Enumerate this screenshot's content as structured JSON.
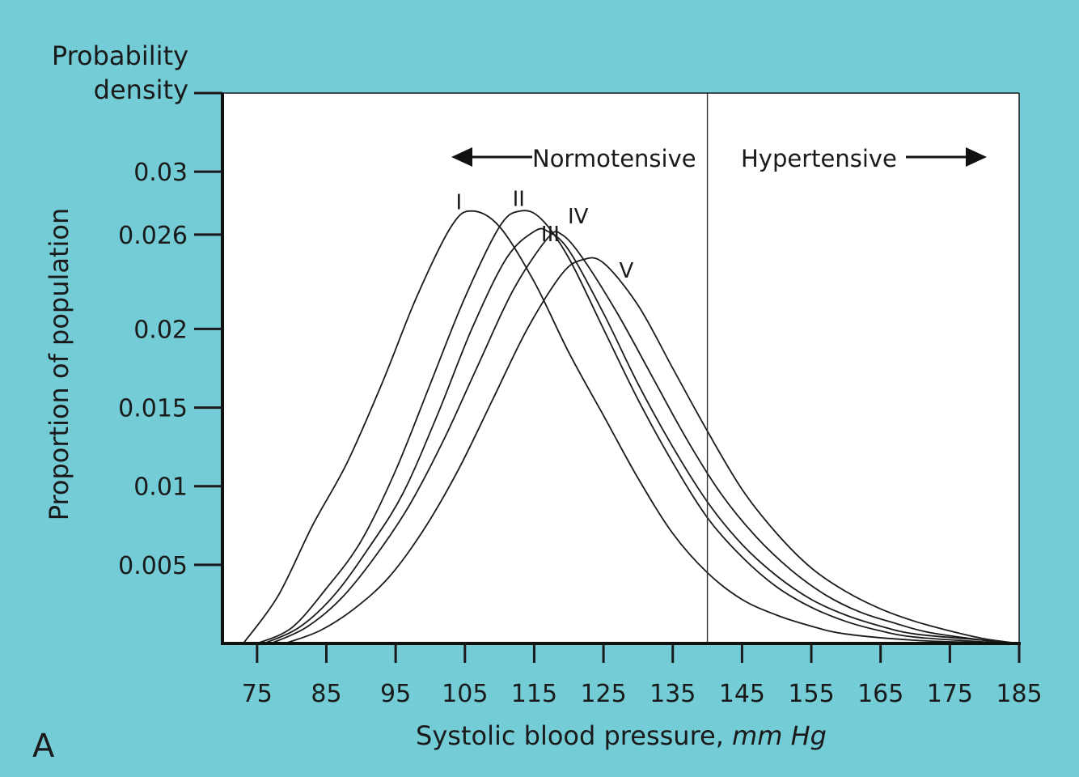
{
  "panel_label": "A",
  "colors": {
    "background": "#74ccd6",
    "plot_area": "#ffffff",
    "ink": "#1a1a1a"
  },
  "chart_data": {
    "type": "line",
    "ytop_label_line1": "Probability",
    "ytop_label_line2": "density",
    "ylabel": "Proportion of population",
    "xlabel_main": "Systolic blood pressure, ",
    "xlabel_unit": "mm Hg",
    "xlim": [
      70,
      185
    ],
    "ylim": [
      0,
      0.035
    ],
    "x_ticks": [
      75,
      85,
      95,
      105,
      115,
      125,
      135,
      145,
      155,
      165,
      175,
      185
    ],
    "y_ticks": [
      {
        "value": 0.005,
        "label": "0.005"
      },
      {
        "value": 0.01,
        "label": "0.01"
      },
      {
        "value": 0.015,
        "label": "0.015"
      },
      {
        "value": 0.02,
        "label": "0.02"
      },
      {
        "value": 0.026,
        "label": "0.026"
      },
      {
        "value": 0.03,
        "label": "0.03"
      },
      {
        "value": 0.035,
        "label": ""
      }
    ],
    "threshold": {
      "x": 140,
      "left_label": "Normotensive",
      "right_label": "Hypertensive"
    },
    "grid": false,
    "series": [
      {
        "name": "I",
        "x": [
          73,
          78,
          83,
          88,
          93,
          98,
          103,
          106,
          110,
          115,
          120,
          125,
          130,
          135,
          140,
          145,
          150,
          155,
          160,
          170,
          180,
          185
        ],
        "y": [
          0.0,
          0.003,
          0.0075,
          0.0115,
          0.0165,
          0.022,
          0.0265,
          0.0275,
          0.0265,
          0.023,
          0.0185,
          0.0145,
          0.0105,
          0.007,
          0.0045,
          0.0028,
          0.0018,
          0.0011,
          0.0006,
          0.0002,
          5e-05,
          0.0
        ]
      },
      {
        "name": "II",
        "x": [
          75,
          80,
          85,
          90,
          95,
          100,
          105,
          110,
          113,
          116,
          120,
          125,
          130,
          135,
          140,
          145,
          150,
          155,
          160,
          165,
          170,
          180,
          185
        ],
        "y": [
          0.0,
          0.001,
          0.0035,
          0.0065,
          0.011,
          0.0165,
          0.022,
          0.0265,
          0.0275,
          0.027,
          0.0245,
          0.02,
          0.0155,
          0.0115,
          0.008,
          0.0055,
          0.0036,
          0.0023,
          0.0014,
          0.0008,
          0.0004,
          0.0001,
          0.0
        ]
      },
      {
        "name": "III",
        "x": [
          76,
          81,
          86,
          91,
          96,
          101,
          106,
          111,
          115,
          117,
          120,
          125,
          130,
          135,
          140,
          145,
          150,
          155,
          160,
          165,
          170,
          180,
          185
        ],
        "y": [
          0.0,
          0.001,
          0.003,
          0.006,
          0.0095,
          0.0145,
          0.02,
          0.0245,
          0.0262,
          0.0262,
          0.025,
          0.021,
          0.0165,
          0.0125,
          0.009,
          0.0063,
          0.0043,
          0.0028,
          0.0018,
          0.0011,
          0.0006,
          0.0002,
          0.0
        ]
      },
      {
        "name": "IV",
        "x": [
          77,
          82,
          87,
          92,
          97,
          102,
          107,
          112,
          117,
          119,
          122,
          127,
          132,
          137,
          142,
          147,
          152,
          157,
          162,
          167,
          172,
          180,
          185
        ],
        "y": [
          0.0,
          0.001,
          0.0028,
          0.0055,
          0.0088,
          0.013,
          0.0178,
          0.0225,
          0.0258,
          0.026,
          0.0245,
          0.021,
          0.017,
          0.013,
          0.0095,
          0.0068,
          0.0047,
          0.0031,
          0.002,
          0.0013,
          0.0007,
          0.0002,
          0.0
        ]
      },
      {
        "name": "V",
        "x": [
          79,
          84,
          89,
          94,
          99,
          104,
          109,
          114,
          119,
          122,
          125,
          130,
          135,
          140,
          145,
          150,
          155,
          160,
          165,
          170,
          175,
          180,
          185
        ],
        "y": [
          0.0,
          0.0008,
          0.0022,
          0.0042,
          0.0072,
          0.011,
          0.0155,
          0.02,
          0.0235,
          0.0244,
          0.0242,
          0.0215,
          0.0175,
          0.0135,
          0.0098,
          0.007,
          0.0048,
          0.0033,
          0.0022,
          0.0014,
          0.0008,
          0.0003,
          0.0
        ]
      }
    ]
  }
}
